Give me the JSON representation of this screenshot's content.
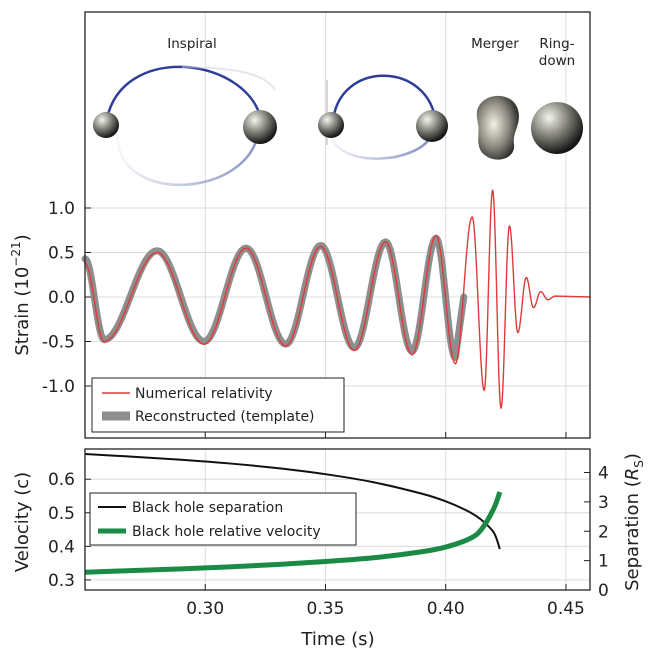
{
  "chart_data": [
    {
      "type": "line",
      "ylabel": "Strain (10",
      "ylabel_exp": "−21",
      "ylabel_close": ")",
      "xlim": [
        0.25,
        0.46
      ],
      "ylim": [
        -1.5,
        1.5
      ],
      "yticks": [
        1.0,
        0.5,
        0.0,
        -0.5,
        -1.0
      ],
      "ytick_labels": [
        "1.0",
        "0.5",
        "0.0",
        "-0.5",
        "-1.0"
      ],
      "grid": true,
      "legend_position": "lower-left",
      "stage_labels": {
        "inspiral": "Inspiral",
        "merger": "Merger",
        "ringdown_1": "Ring-",
        "ringdown_2": "down"
      },
      "series": [
        {
          "name": "Numerical relativity",
          "color": "#e03a3a",
          "peaks": [
            {
              "t": 0.258,
              "h": -0.5
            },
            {
              "t": 0.28,
              "h": 0.5
            },
            {
              "t": 0.2995,
              "h": -0.53
            },
            {
              "t": 0.317,
              "h": 0.55
            },
            {
              "t": 0.3335,
              "h": -0.55
            },
            {
              "t": 0.348,
              "h": 0.57
            },
            {
              "t": 0.362,
              "h": -0.6
            },
            {
              "t": 0.375,
              "h": 0.62
            },
            {
              "t": 0.386,
              "h": -0.65
            },
            {
              "t": 0.396,
              "h": 0.69
            },
            {
              "t": 0.404,
              "h": -0.75
            },
            {
              "t": 0.411,
              "h": 0.9
            },
            {
              "t": 0.416,
              "h": -1.05
            },
            {
              "t": 0.4195,
              "h": 1.2
            },
            {
              "t": 0.423,
              "h": -1.25
            },
            {
              "t": 0.4265,
              "h": 0.8
            },
            {
              "t": 0.43,
              "h": -0.4
            },
            {
              "t": 0.4335,
              "h": 0.22
            },
            {
              "t": 0.4365,
              "h": -0.12
            },
            {
              "t": 0.4395,
              "h": 0.06
            },
            {
              "t": 0.4425,
              "h": -0.03
            },
            {
              "t": 0.4455,
              "h": 0.01
            }
          ],
          "start": {
            "t": 0.25,
            "h": 0.38
          },
          "end_t": 0.46
        },
        {
          "name": "Reconstructed (template)",
          "color": "#8e8e8e",
          "peaks": [
            {
              "t": 0.258,
              "h": -0.48
            },
            {
              "t": 0.28,
              "h": 0.52
            },
            {
              "t": 0.2995,
              "h": -0.5
            },
            {
              "t": 0.317,
              "h": 0.55
            },
            {
              "t": 0.3335,
              "h": -0.53
            },
            {
              "t": 0.348,
              "h": 0.58
            },
            {
              "t": 0.362,
              "h": -0.57
            },
            {
              "t": 0.375,
              "h": 0.62
            },
            {
              "t": 0.386,
              "h": -0.61
            },
            {
              "t": 0.396,
              "h": 0.66
            },
            {
              "t": 0.404,
              "h": -0.68
            }
          ],
          "start": {
            "t": 0.25,
            "h": 0.43
          },
          "end_t": 0.4075
        }
      ]
    },
    {
      "type": "line",
      "xlabel": "Time (s)",
      "ylabel": "Velocity (c)",
      "ylabel_right": "Separation (",
      "ylabel_right_sym": "R",
      "ylabel_right_sub": "S",
      "ylabel_right_close": ")",
      "xlim": [
        0.25,
        0.46
      ],
      "ylim": [
        0.27,
        0.69
      ],
      "ylim_right": [
        0,
        4.8
      ],
      "xticks": [
        0.3,
        0.35,
        0.4,
        0.45
      ],
      "xtick_labels": [
        "0.30",
        "0.35",
        "0.40",
        "0.45"
      ],
      "yticks": [
        0.3,
        0.4,
        0.5,
        0.6
      ],
      "ytick_labels": [
        "0.3",
        "0.4",
        "0.5",
        "0.6"
      ],
      "yticks_right": [
        0,
        1,
        2,
        3,
        4
      ],
      "ytick_labels_right": [
        "0",
        "1",
        "2",
        "3",
        "4"
      ],
      "grid": true,
      "legend_position": "upper-left",
      "series": [
        {
          "name": "Black hole separation",
          "color": "#111111",
          "x": [
            0.25,
            0.27,
            0.29,
            0.31,
            0.33,
            0.35,
            0.37,
            0.39,
            0.4,
            0.41,
            0.415,
            0.42,
            0.4225
          ],
          "y": [
            0.675,
            0.667,
            0.658,
            0.647,
            0.633,
            0.615,
            0.591,
            0.557,
            0.534,
            0.502,
            0.478,
            0.441,
            0.392
          ]
        },
        {
          "name": "Black hole relative velocity",
          "color": "#1a8a45",
          "x": [
            0.25,
            0.27,
            0.29,
            0.31,
            0.33,
            0.35,
            0.37,
            0.39,
            0.4,
            0.41,
            0.415,
            0.42,
            0.4225
          ],
          "y": [
            0.323,
            0.328,
            0.333,
            0.339,
            0.346,
            0.355,
            0.366,
            0.384,
            0.398,
            0.423,
            0.452,
            0.513,
            0.562
          ]
        }
      ]
    }
  ]
}
